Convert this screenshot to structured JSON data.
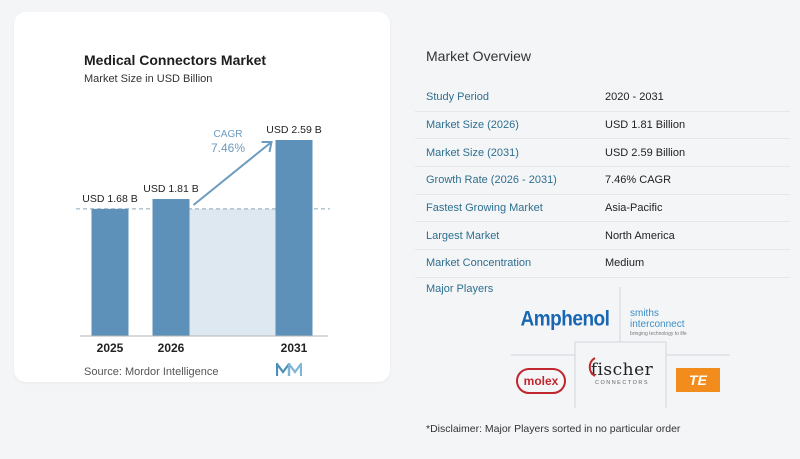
{
  "chart": {
    "title": "Medical Connectors Market",
    "subtitle": "Market Size in USD Billion",
    "source": "Source: Mordor Intelligence",
    "cagr_label": "CAGR",
    "cagr_value": "7.46%"
  },
  "chart_data": {
    "type": "bar",
    "title": "Medical Connectors Market",
    "subtitle": "Market Size in USD Billion",
    "categories": [
      "2025",
      "2026",
      "2031"
    ],
    "values": [
      1.68,
      1.81,
      2.59
    ],
    "data_labels": [
      "USD 1.68 B",
      "USD 1.81 B",
      "USD 2.59 B"
    ],
    "xlabel": "",
    "ylabel": "",
    "ylim": [
      0,
      2.59
    ],
    "grid": false,
    "annotation": "CAGR 7.46%",
    "colors": {
      "bar": "#5d91b9",
      "band": "#dde8f1",
      "arrow": "#6c9cc0",
      "axis": "#b5b5b5"
    }
  },
  "overview": {
    "title": "Market Overview",
    "rows": [
      {
        "key": "Study Period",
        "value": "2020 - 2031"
      },
      {
        "key": "Market Size (2026)",
        "value": "USD 1.81 Billion"
      },
      {
        "key": "Market Size (2031)",
        "value": "USD 2.59 Billion"
      },
      {
        "key": "Growth Rate (2026 - 2031)",
        "value": "7.46% CAGR"
      },
      {
        "key": "Fastest Growing Market",
        "value": "Asia-Pacific"
      },
      {
        "key": "Largest Market",
        "value": "North America"
      },
      {
        "key": "Market Concentration",
        "value": "Medium"
      }
    ]
  },
  "players": {
    "title": "Major Players",
    "logos": {
      "amphenol": "Amphenol",
      "smiths_line1": "smiths",
      "smiths_line2": "interconnect",
      "smiths_tagline": "bringing technology to life",
      "molex": "molex",
      "fischer": "fischer",
      "fischer_sub": "CONNECTORS",
      "te": "TE"
    }
  },
  "disclaimer": "*Disclaimer: Major Players sorted in no particular order"
}
